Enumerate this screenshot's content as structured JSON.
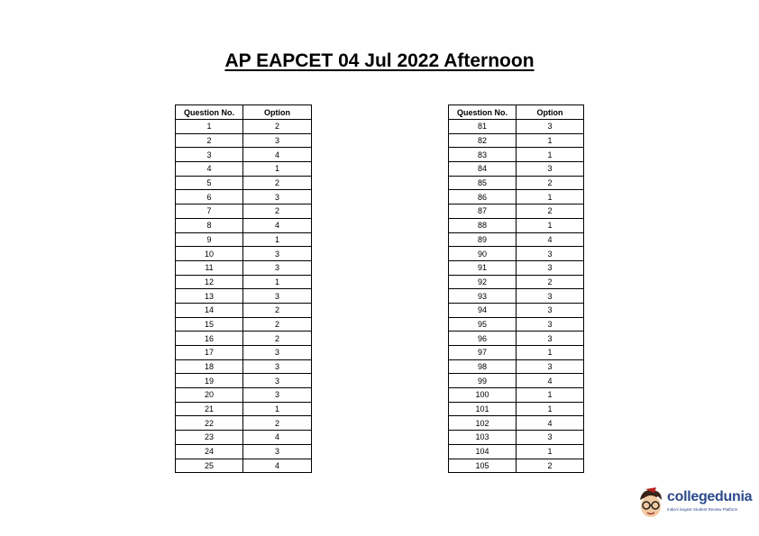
{
  "title": "AP EAPCET 04 Jul 2022 Afternoon",
  "tables": [
    {
      "headers": [
        "Question No.",
        "Option"
      ],
      "rows": [
        [
          "1",
          "2"
        ],
        [
          "2",
          "3"
        ],
        [
          "3",
          "4"
        ],
        [
          "4",
          "1"
        ],
        [
          "5",
          "2"
        ],
        [
          "6",
          "3"
        ],
        [
          "7",
          "2"
        ],
        [
          "8",
          "4"
        ],
        [
          "9",
          "1"
        ],
        [
          "10",
          "3"
        ],
        [
          "11",
          "3"
        ],
        [
          "12",
          "1"
        ],
        [
          "13",
          "3"
        ],
        [
          "14",
          "2"
        ],
        [
          "15",
          "2"
        ],
        [
          "16",
          "2"
        ],
        [
          "17",
          "3"
        ],
        [
          "18",
          "3"
        ],
        [
          "19",
          "3"
        ],
        [
          "20",
          "3"
        ],
        [
          "21",
          "1"
        ],
        [
          "22",
          "2"
        ],
        [
          "23",
          "4"
        ],
        [
          "24",
          "3"
        ],
        [
          "25",
          "4"
        ]
      ]
    },
    {
      "headers": [
        "Question No.",
        "Option"
      ],
      "rows": [
        [
          "81",
          "3"
        ],
        [
          "82",
          "1"
        ],
        [
          "83",
          "1"
        ],
        [
          "84",
          "3"
        ],
        [
          "85",
          "2"
        ],
        [
          "86",
          "1"
        ],
        [
          "87",
          "2"
        ],
        [
          "88",
          "1"
        ],
        [
          "89",
          "4"
        ],
        [
          "90",
          "3"
        ],
        [
          "91",
          "3"
        ],
        [
          "92",
          "2"
        ],
        [
          "93",
          "3"
        ],
        [
          "94",
          "3"
        ],
        [
          "95",
          "3"
        ],
        [
          "96",
          "3"
        ],
        [
          "97",
          "1"
        ],
        [
          "98",
          "3"
        ],
        [
          "99",
          "4"
        ],
        [
          "100",
          "1"
        ],
        [
          "101",
          "1"
        ],
        [
          "102",
          "4"
        ],
        [
          "103",
          "3"
        ],
        [
          "104",
          "1"
        ],
        [
          "105",
          "2"
        ]
      ]
    }
  ],
  "logo": {
    "name": "collegedunia",
    "tagline": "India's largest Student Review Platform",
    "color": "#2c4a8c"
  }
}
